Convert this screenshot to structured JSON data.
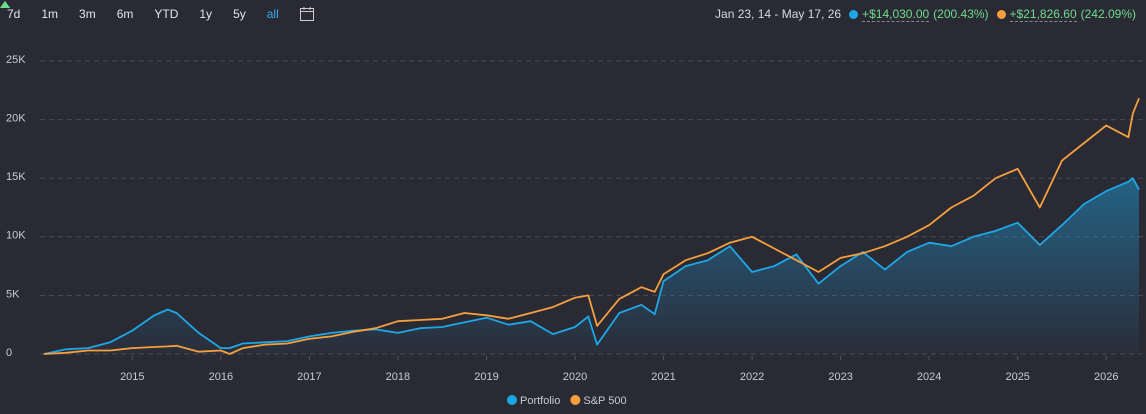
{
  "ranges": [
    "7d",
    "1m",
    "3m",
    "6m",
    "YTD",
    "1y",
    "5y",
    "all"
  ],
  "selected_range": "all",
  "date_range": "Jan 23, 14 - May 17, 26",
  "chart_data": {
    "type": "line",
    "x": [
      2014,
      2014.25,
      2014.5,
      2014.75,
      2015,
      2015.25,
      2015.4,
      2015.5,
      2015.75,
      2016,
      2016.1,
      2016.25,
      2016.5,
      2016.75,
      2017,
      2017.25,
      2017.5,
      2017.75,
      2018,
      2018.25,
      2018.5,
      2018.75,
      2019,
      2019.25,
      2019.5,
      2019.75,
      2020,
      2020.15,
      2020.25,
      2020.5,
      2020.75,
      2020.9,
      2021,
      2021.25,
      2021.5,
      2021.75,
      2022,
      2022.25,
      2022.5,
      2022.75,
      2023,
      2023.25,
      2023.5,
      2023.75,
      2024,
      2024.25,
      2024.5,
      2024.75,
      2025,
      2025.25,
      2025.5,
      2025.75,
      2026,
      2026.25,
      2026.3,
      2026.37
    ],
    "xlim": [
      2013.98,
      2026.37
    ],
    "xticks": [
      2015,
      2016,
      2017,
      2018,
      2019,
      2020,
      2021,
      2022,
      2023,
      2024,
      2025,
      2026
    ],
    "ylim": [
      0,
      25000
    ],
    "yticks": [
      0,
      {
        "value": 5000,
        "label": "5K"
      },
      {
        "value": 10000,
        "label": "10K"
      },
      {
        "value": 15000,
        "label": "15K"
      },
      {
        "value": 20000,
        "label": "20K"
      },
      {
        "value": 25000,
        "label": "25K"
      }
    ],
    "grid": true,
    "series": [
      {
        "name": "Portfolio",
        "color": "#1ea7e6",
        "area": true,
        "change": "+$14,030.00",
        "change_pct": "(200.43%)",
        "values": [
          0,
          400,
          500,
          1000,
          2000,
          3300,
          3800,
          3500,
          1800,
          500,
          500,
          900,
          1000,
          1100,
          1500,
          1800,
          2000,
          2100,
          1800,
          2200,
          2300,
          2700,
          3100,
          2500,
          2800,
          1700,
          2300,
          3200,
          800,
          3500,
          4200,
          3400,
          6200,
          7500,
          8000,
          9200,
          7000,
          7500,
          8500,
          6000,
          7500,
          8700,
          7200,
          8700,
          9500,
          9200,
          10000,
          10500,
          11200,
          9300,
          11000,
          12800,
          13900,
          14700,
          15000,
          14030
        ]
      },
      {
        "name": "S&P 500",
        "color": "#f5a03c",
        "area": false,
        "change": "+$21,826.60",
        "change_pct": "(242.09%)",
        "values": [
          0,
          100,
          300,
          300,
          500,
          600,
          650,
          700,
          200,
          300,
          0,
          500,
          800,
          900,
          1300,
          1500,
          1900,
          2200,
          2800,
          2900,
          3000,
          3500,
          3300,
          3000,
          3500,
          4000,
          4800,
          5000,
          2400,
          4700,
          5700,
          5300,
          6800,
          8000,
          8600,
          9500,
          10000,
          9000,
          8000,
          7000,
          8200,
          8600,
          9200,
          10000,
          11000,
          12500,
          13500,
          15000,
          15800,
          12500,
          16500,
          18000,
          19500,
          18500,
          20500,
          21826.6
        ]
      }
    ]
  }
}
